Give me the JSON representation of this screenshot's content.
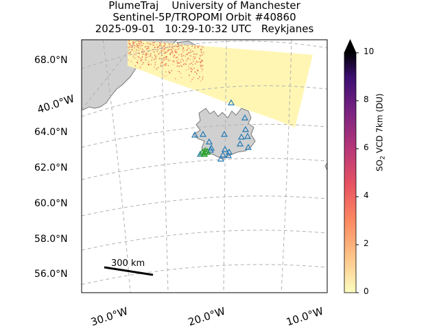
{
  "title": {
    "line1": "PlumeTraj    University of Manchester",
    "line2": "Sentinel-5P/TROPOMI Orbit #40860",
    "line3": "2025-09-01   10:29-10:32 UTC   Reykjanes"
  },
  "map": {
    "lat_labels": [
      "68.0°N",
      "64.0°N",
      "62.0°N",
      "60.0°N",
      "58.0°N",
      "56.0°N"
    ],
    "lon_labels": [
      "40.0°W",
      "30.0°W",
      "20.0°W",
      "10.0°W"
    ],
    "scale_bar": "300 km",
    "land_color": "#d0d0d0",
    "coast_color": "#777777",
    "grid_color": "#b0b0b0",
    "volcano_marker_color": "#1f77b4",
    "eruption_marker_color": "#2ca02c",
    "swath_color": "#fff5b0",
    "swath_noise_color": "#e24a33"
  },
  "colorbar": {
    "label_main": "SO",
    "label_sub": "2",
    "label_rest": " VCD 7km (DU)",
    "ticks": [
      "10",
      "8",
      "6",
      "4",
      "2",
      "0"
    ],
    "range": [
      0,
      10
    ],
    "extend": "max",
    "colormap": "magma_r"
  }
}
